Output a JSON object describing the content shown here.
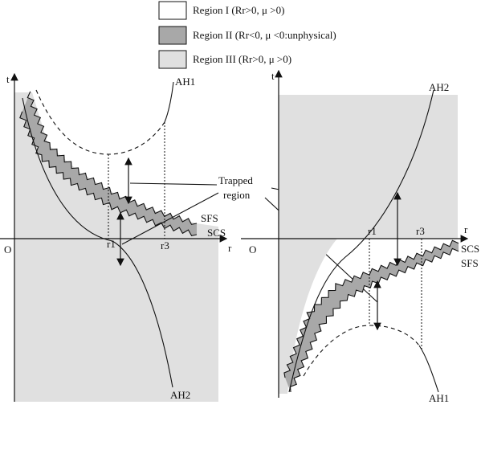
{
  "legend": {
    "items": [
      {
        "label": "Region I (Rr>0, μ >0)"
      },
      {
        "label": "Region II (Rr<0, μ <0:unphysical)"
      },
      {
        "label": "Region III (Rr>0, μ >0)"
      }
    ]
  },
  "left_panel": {
    "t_axis": "t",
    "r_axis": "r",
    "origin": "O",
    "ah1": "AH1",
    "ah2": "AH2",
    "sfs": "SFS",
    "scs": "SCS",
    "r1": "r1",
    "r3": "r3"
  },
  "trapped_region": {
    "lines": [
      "Trapped",
      "region"
    ]
  },
  "right_panel": {
    "t_axis": "t",
    "r_axis": "r",
    "origin": "O",
    "ah1": "AH1",
    "ah2": "AH2",
    "sfs": "SFS",
    "scs": "SCS",
    "r1": "r1",
    "r3": "r3"
  }
}
